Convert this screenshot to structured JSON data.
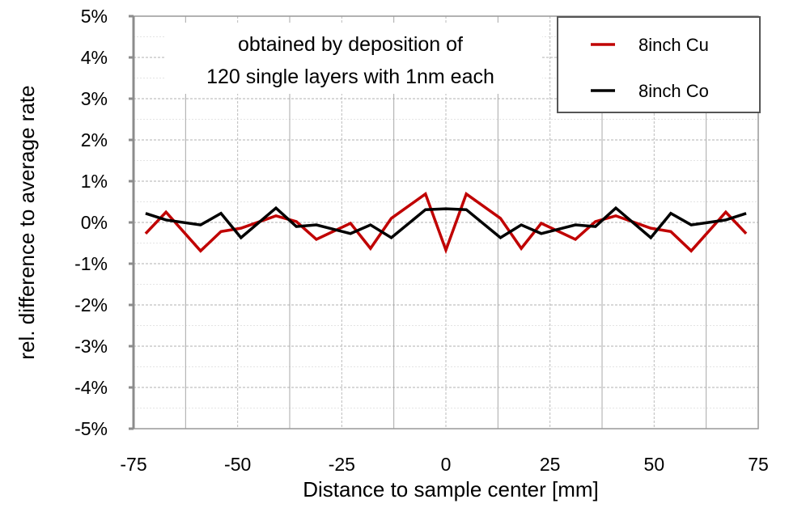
{
  "chart_data": {
    "type": "line",
    "title": "",
    "annotation": [
      "obtained  by deposition of",
      "120 single layers with 1nm each"
    ],
    "xlabel": "Distance to sample center [mm]",
    "ylabel": "rel. difference to average rate",
    "xlim": [
      -75,
      75
    ],
    "ylim": [
      -5,
      5
    ],
    "xticks": [
      -75,
      -50,
      -25,
      0,
      25,
      50,
      75
    ],
    "xtick_labels": [
      "-75",
      "-50",
      "-25",
      "0",
      "25",
      "50",
      "75"
    ],
    "yticks": [
      5,
      4,
      3,
      2,
      1,
      0,
      -1,
      -2,
      -3,
      -4,
      -5
    ],
    "ytick_labels": [
      "5%",
      "4%",
      "3%",
      "2%",
      "1%",
      "0%",
      "-1%",
      "-2%",
      "-3%",
      "-4%",
      "-5%"
    ],
    "grid": true,
    "legend_position": "top-right",
    "x": [
      -72.1,
      -67.2,
      -58.9,
      -54,
      -49.2,
      -40.8,
      -35.9,
      -31.1,
      -22.9,
      -18.1,
      -13.1,
      -4.9,
      0,
      4.9,
      13.1,
      18.1,
      22.9,
      31.1,
      35.9,
      40.8,
      49.2,
      54,
      58.9,
      67.2,
      72.1
    ],
    "series": [
      {
        "name": "8inch Cu",
        "color": "#c00000",
        "values": [
          -0.27,
          0.25,
          -0.69,
          -0.22,
          -0.14,
          0.16,
          0.02,
          -0.41,
          -0.02,
          -0.63,
          0.1,
          0.69,
          -0.67,
          0.69,
          0.1,
          -0.63,
          -0.02,
          -0.41,
          0.02,
          0.16,
          -0.14,
          -0.22,
          -0.69,
          0.25,
          -0.27
        ]
      },
      {
        "name": "8inch Co",
        "color": "#000000",
        "values": [
          0.22,
          0.06,
          -0.06,
          0.22,
          -0.37,
          0.35,
          -0.1,
          -0.06,
          -0.27,
          -0.06,
          -0.37,
          0.31,
          0.33,
          0.31,
          -0.37,
          -0.06,
          -0.27,
          -0.06,
          -0.1,
          0.35,
          -0.37,
          0.22,
          -0.06,
          0.06,
          0.22
        ]
      }
    ]
  }
}
